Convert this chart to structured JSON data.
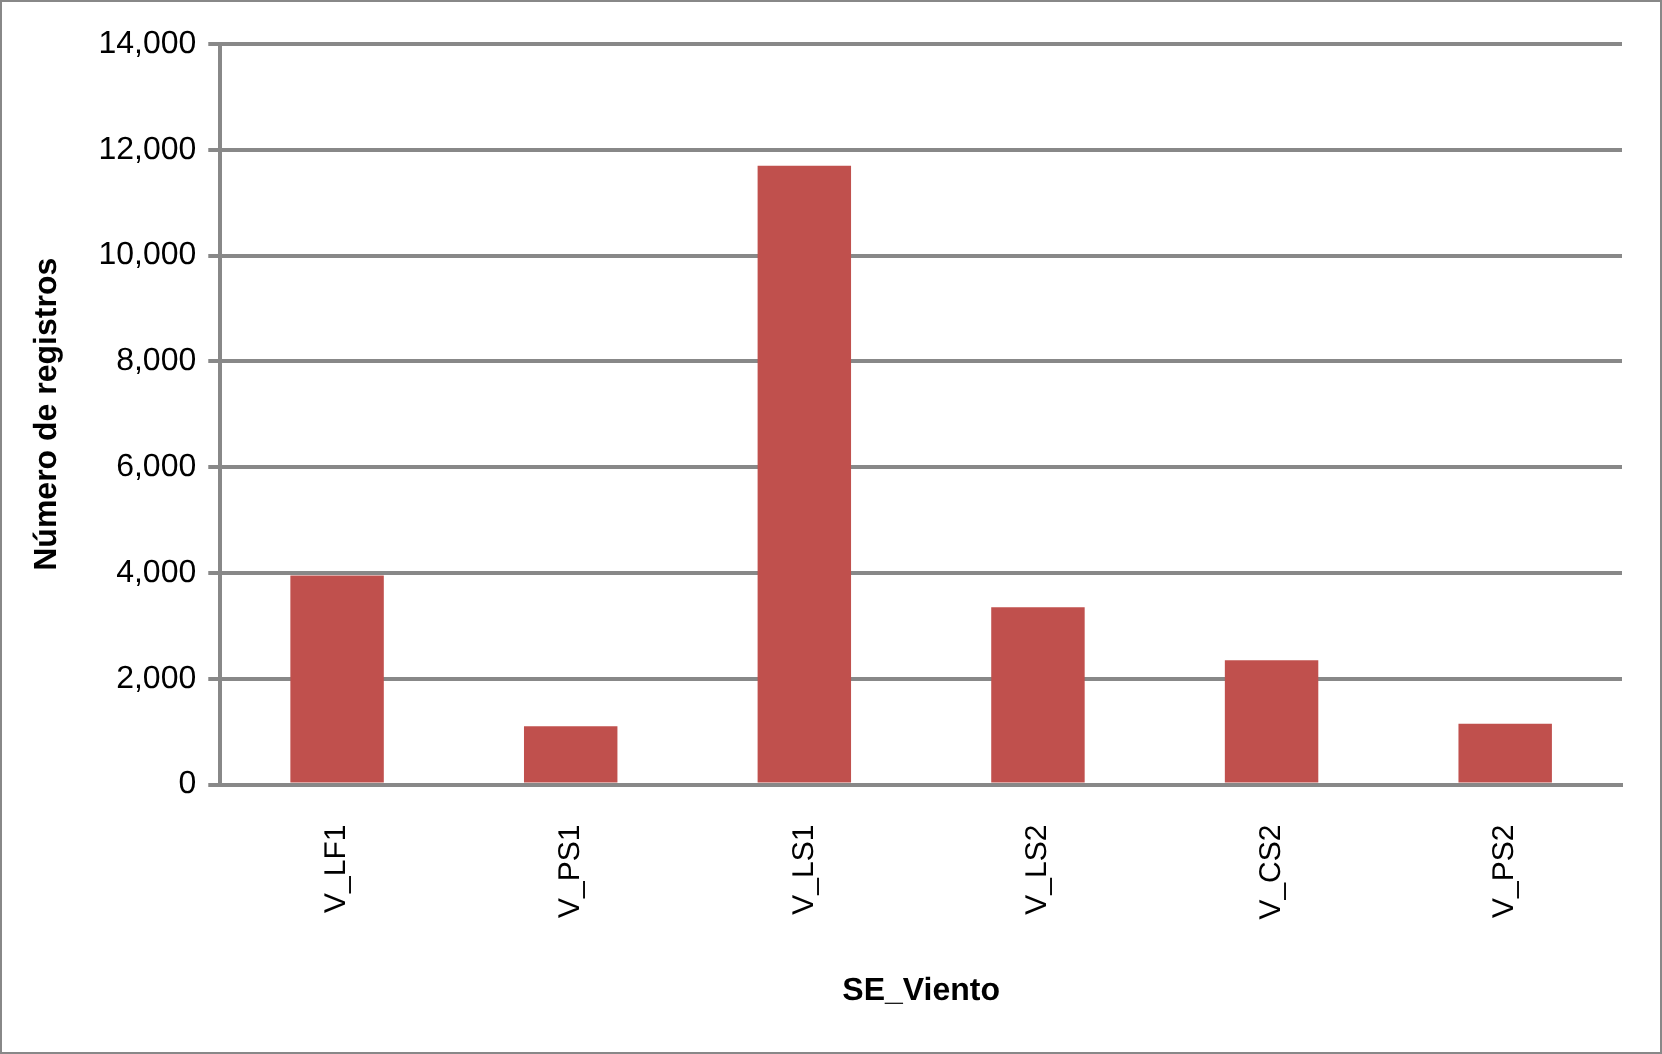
{
  "chart_data": {
    "type": "bar",
    "xlabel": "SE_Viento",
    "ylabel": "Número de registros",
    "categories": [
      "V_LF1",
      "V_PS1",
      "V_LS1",
      "V_LS2",
      "V_CS2",
      "V_PS2"
    ],
    "values": [
      3950,
      1100,
      11700,
      3350,
      2350,
      1150
    ],
    "color": "#c0504d",
    "ylim": [
      0,
      14000
    ],
    "yticks": [
      0,
      {
        "value": 2000,
        "label": "2,000"
      },
      {
        "value": 4000,
        "label": "4,000"
      },
      {
        "value": 6000,
        "label": "6,000"
      },
      {
        "value": 8000,
        "label": "8,000"
      },
      {
        "value": 10000,
        "label": "10,000"
      },
      {
        "value": 12000,
        "label": "12,000"
      },
      {
        "value": 14000,
        "label": "14,000"
      }
    ],
    "grid": "y",
    "legend": false
  }
}
